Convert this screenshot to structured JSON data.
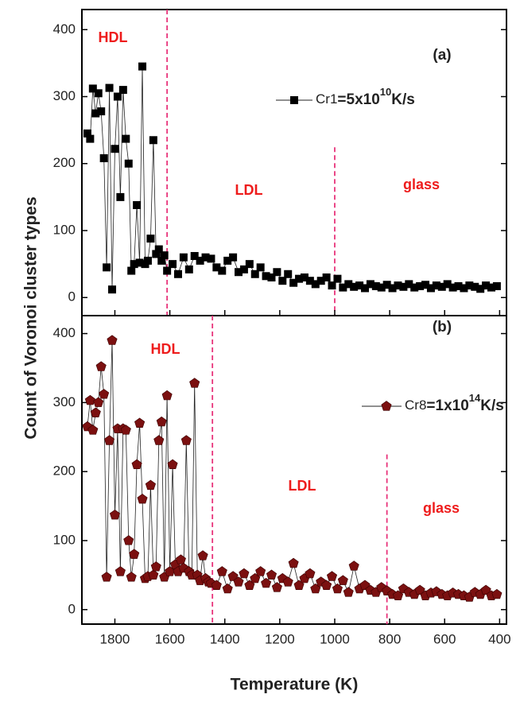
{
  "figure": {
    "y_label": "Count of Voronoi cluster types",
    "x_label": "Temperature (K)"
  },
  "chart_data": [
    {
      "type": "line",
      "panel_label": "(a)",
      "xlim": [
        1920,
        375
      ],
      "ylim": [
        -27,
        430
      ],
      "yticks": [
        0,
        100,
        200,
        300,
        400
      ],
      "vlines": [
        1610,
        1000
      ],
      "vline_color": "#e8337a",
      "annotations": [
        "HDL",
        "LDL",
        "glass"
      ],
      "series": [
        {
          "name": "Cr1",
          "rate": [
            "=5x10",
            "10",
            "K/s"
          ],
          "color": "#000000",
          "marker": "square",
          "x": [
            1900,
            1890,
            1880,
            1870,
            1860,
            1850,
            1840,
            1830,
            1820,
            1810,
            1800,
            1790,
            1780,
            1770,
            1760,
            1750,
            1740,
            1730,
            1720,
            1710,
            1700,
            1690,
            1680,
            1670,
            1660,
            1650,
            1640,
            1630,
            1620,
            1610,
            1590,
            1570,
            1550,
            1530,
            1510,
            1490,
            1470,
            1450,
            1430,
            1410,
            1390,
            1370,
            1350,
            1330,
            1310,
            1290,
            1270,
            1250,
            1230,
            1210,
            1190,
            1170,
            1150,
            1130,
            1110,
            1090,
            1070,
            1050,
            1030,
            1010,
            990,
            970,
            950,
            930,
            910,
            890,
            870,
            850,
            830,
            810,
            790,
            770,
            750,
            730,
            710,
            690,
            670,
            650,
            630,
            610,
            590,
            570,
            550,
            530,
            510,
            490,
            470,
            450,
            430,
            410
          ],
          "values": [
            245,
            237,
            312,
            275,
            305,
            278,
            208,
            45,
            313,
            12,
            222,
            300,
            150,
            310,
            237,
            200,
            40,
            50,
            138,
            52,
            345,
            50,
            55,
            88,
            235,
            65,
            72,
            55,
            63,
            40,
            50,
            35,
            60,
            42,
            62,
            55,
            60,
            58,
            45,
            40,
            55,
            60,
            38,
            42,
            50,
            35,
            45,
            32,
            30,
            38,
            25,
            35,
            22,
            28,
            30,
            25,
            20,
            25,
            30,
            18,
            28,
            15,
            20,
            16,
            18,
            14,
            20,
            17,
            15,
            19,
            14,
            18,
            16,
            20,
            15,
            17,
            19,
            14,
            18,
            16,
            20,
            15,
            17,
            14,
            18,
            16,
            13,
            18,
            15,
            17
          ]
        }
      ]
    },
    {
      "type": "line",
      "panel_label": "(b)",
      "xlim": [
        1920,
        375
      ],
      "ylim": [
        -21,
        426
      ],
      "yticks": [
        0,
        100,
        200,
        300,
        400
      ],
      "xticks": [
        1800,
        1600,
        1400,
        1200,
        1000,
        800,
        600,
        400
      ],
      "vlines": [
        1445,
        810
      ],
      "vline_color": "#e8337a",
      "annotations": [
        "HDL",
        "LDL",
        "glass"
      ],
      "series": [
        {
          "name": "Cr8",
          "rate": [
            "=1x10",
            "14",
            "K/s"
          ],
          "color": "#7b1010",
          "marker": "pentagon",
          "x": [
            1900,
            1890,
            1880,
            1870,
            1860,
            1850,
            1840,
            1830,
            1820,
            1810,
            1800,
            1790,
            1780,
            1770,
            1760,
            1750,
            1740,
            1730,
            1720,
            1710,
            1700,
            1690,
            1680,
            1670,
            1660,
            1650,
            1640,
            1630,
            1620,
            1610,
            1600,
            1590,
            1580,
            1570,
            1560,
            1550,
            1540,
            1530,
            1520,
            1510,
            1500,
            1490,
            1480,
            1470,
            1460,
            1450,
            1430,
            1410,
            1390,
            1370,
            1350,
            1330,
            1310,
            1290,
            1270,
            1250,
            1230,
            1210,
            1190,
            1170,
            1150,
            1130,
            1110,
            1090,
            1070,
            1050,
            1030,
            1010,
            990,
            970,
            950,
            930,
            910,
            890,
            870,
            850,
            830,
            810,
            790,
            770,
            750,
            730,
            710,
            690,
            670,
            650,
            630,
            610,
            590,
            570,
            550,
            530,
            510,
            490,
            470,
            450,
            430,
            410
          ],
          "values": [
            265,
            303,
            260,
            285,
            300,
            352,
            312,
            47,
            245,
            390,
            137,
            262,
            55,
            262,
            260,
            100,
            47,
            80,
            210,
            270,
            160,
            45,
            48,
            180,
            50,
            62,
            245,
            272,
            47,
            310,
            55,
            210,
            65,
            55,
            72,
            60,
            245,
            55,
            50,
            328,
            50,
            42,
            78,
            45,
            40,
            38,
            35,
            55,
            30,
            48,
            40,
            52,
            35,
            45,
            55,
            38,
            50,
            32,
            45,
            40,
            67,
            35,
            45,
            52,
            30,
            40,
            35,
            48,
            30,
            42,
            25,
            63,
            30,
            35,
            28,
            25,
            32,
            27,
            22,
            20,
            30,
            25,
            22,
            28,
            20,
            24,
            26,
            22,
            20,
            24,
            22,
            20,
            18,
            25,
            22,
            28,
            20,
            22
          ]
        }
      ]
    }
  ]
}
